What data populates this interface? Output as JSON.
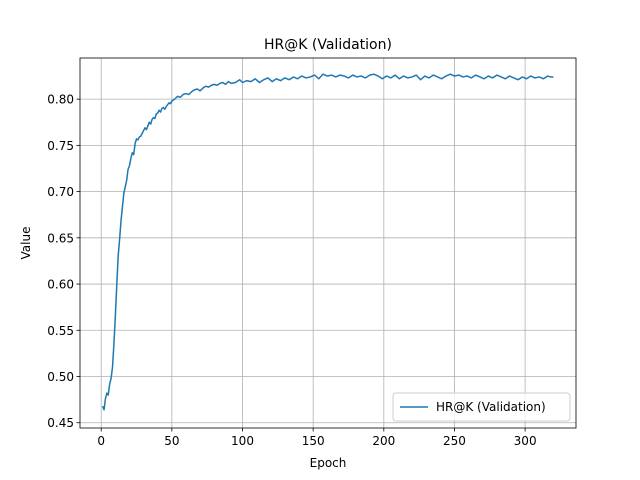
{
  "chart_data": {
    "type": "line",
    "title": "HR@K (Validation)",
    "xlabel": "Epoch",
    "ylabel": "Value",
    "xlim": [
      -15,
      336
    ],
    "ylim": [
      0.4443,
      0.8445
    ],
    "xticks": [
      0,
      50,
      100,
      150,
      200,
      250,
      300
    ],
    "yticks": [
      0.45,
      0.5,
      0.55,
      0.6,
      0.65,
      0.7,
      0.75,
      0.8
    ],
    "grid": true,
    "legend_position": "lower-right",
    "series": [
      {
        "name": "HR@K (Validation)",
        "color": "#1f77b4",
        "points": [
          [
            1,
            0.468
          ],
          [
            2,
            0.464
          ],
          [
            3,
            0.476
          ],
          [
            4,
            0.482
          ],
          [
            5,
            0.48
          ],
          [
            6,
            0.492
          ],
          [
            7,
            0.498
          ],
          [
            8,
            0.51
          ],
          [
            9,
            0.535
          ],
          [
            10,
            0.565
          ],
          [
            11,
            0.598
          ],
          [
            12,
            0.63
          ],
          [
            13,
            0.648
          ],
          [
            14,
            0.668
          ],
          [
            15,
            0.683
          ],
          [
            16,
            0.698
          ],
          [
            17,
            0.705
          ],
          [
            18,
            0.712
          ],
          [
            19,
            0.724
          ],
          [
            20,
            0.728
          ],
          [
            21,
            0.736
          ],
          [
            22,
            0.742
          ],
          [
            23,
            0.74
          ],
          [
            24,
            0.752
          ],
          [
            25,
            0.757
          ],
          [
            26,
            0.756
          ],
          [
            27,
            0.759
          ],
          [
            28,
            0.76
          ],
          [
            29,
            0.763
          ],
          [
            30,
            0.766
          ],
          [
            31,
            0.769
          ],
          [
            32,
            0.767
          ],
          [
            33,
            0.771
          ],
          [
            34,
            0.775
          ],
          [
            35,
            0.773
          ],
          [
            36,
            0.778
          ],
          [
            37,
            0.78
          ],
          [
            38,
            0.779
          ],
          [
            39,
            0.784
          ],
          [
            40,
            0.785
          ],
          [
            41,
            0.788
          ],
          [
            42,
            0.786
          ],
          [
            43,
            0.79
          ],
          [
            44,
            0.791
          ],
          [
            45,
            0.789
          ],
          [
            46,
            0.792
          ],
          [
            47,
            0.794
          ],
          [
            48,
            0.796
          ],
          [
            49,
            0.795
          ],
          [
            50,
            0.798
          ],
          [
            52,
            0.8
          ],
          [
            54,
            0.803
          ],
          [
            56,
            0.802
          ],
          [
            58,
            0.805
          ],
          [
            60,
            0.806
          ],
          [
            62,
            0.805
          ],
          [
            64,
            0.808
          ],
          [
            66,
            0.81
          ],
          [
            68,
            0.811
          ],
          [
            70,
            0.809
          ],
          [
            72,
            0.812
          ],
          [
            74,
            0.814
          ],
          [
            76,
            0.813
          ],
          [
            78,
            0.815
          ],
          [
            80,
            0.816
          ],
          [
            82,
            0.815
          ],
          [
            84,
            0.817
          ],
          [
            86,
            0.818
          ],
          [
            88,
            0.816
          ],
          [
            90,
            0.819
          ],
          [
            92,
            0.817
          ],
          [
            95,
            0.818
          ],
          [
            98,
            0.821
          ],
          [
            100,
            0.818
          ],
          [
            103,
            0.82
          ],
          [
            106,
            0.819
          ],
          [
            109,
            0.822
          ],
          [
            112,
            0.818
          ],
          [
            115,
            0.821
          ],
          [
            118,
            0.823
          ],
          [
            121,
            0.819
          ],
          [
            124,
            0.822
          ],
          [
            127,
            0.82
          ],
          [
            130,
            0.823
          ],
          [
            133,
            0.821
          ],
          [
            136,
            0.824
          ],
          [
            139,
            0.822
          ],
          [
            142,
            0.825
          ],
          [
            145,
            0.823
          ],
          [
            148,
            0.824
          ],
          [
            151,
            0.826
          ],
          [
            154,
            0.822
          ],
          [
            157,
            0.827
          ],
          [
            160,
            0.825
          ],
          [
            163,
            0.826
          ],
          [
            166,
            0.824
          ],
          [
            169,
            0.826
          ],
          [
            172,
            0.825
          ],
          [
            175,
            0.823
          ],
          [
            178,
            0.826
          ],
          [
            181,
            0.824
          ],
          [
            184,
            0.825
          ],
          [
            187,
            0.823
          ],
          [
            190,
            0.826
          ],
          [
            193,
            0.827
          ],
          [
            196,
            0.825
          ],
          [
            199,
            0.822
          ],
          [
            202,
            0.825
          ],
          [
            205,
            0.823
          ],
          [
            208,
            0.826
          ],
          [
            211,
            0.822
          ],
          [
            214,
            0.825
          ],
          [
            217,
            0.823
          ],
          [
            220,
            0.824
          ],
          [
            223,
            0.826
          ],
          [
            226,
            0.821
          ],
          [
            229,
            0.825
          ],
          [
            232,
            0.823
          ],
          [
            235,
            0.826
          ],
          [
            238,
            0.824
          ],
          [
            241,
            0.822
          ],
          [
            244,
            0.825
          ],
          [
            247,
            0.827
          ],
          [
            250,
            0.825
          ],
          [
            253,
            0.826
          ],
          [
            256,
            0.824
          ],
          [
            259,
            0.825
          ],
          [
            262,
            0.823
          ],
          [
            265,
            0.826
          ],
          [
            268,
            0.824
          ],
          [
            271,
            0.822
          ],
          [
            274,
            0.825
          ],
          [
            277,
            0.823
          ],
          [
            280,
            0.826
          ],
          [
            283,
            0.824
          ],
          [
            286,
            0.822
          ],
          [
            289,
            0.825
          ],
          [
            292,
            0.823
          ],
          [
            295,
            0.821
          ],
          [
            298,
            0.824
          ],
          [
            301,
            0.822
          ],
          [
            304,
            0.825
          ],
          [
            307,
            0.823
          ],
          [
            310,
            0.824
          ],
          [
            313,
            0.822
          ],
          [
            316,
            0.825
          ],
          [
            318,
            0.824
          ],
          [
            320,
            0.824
          ]
        ]
      }
    ]
  }
}
